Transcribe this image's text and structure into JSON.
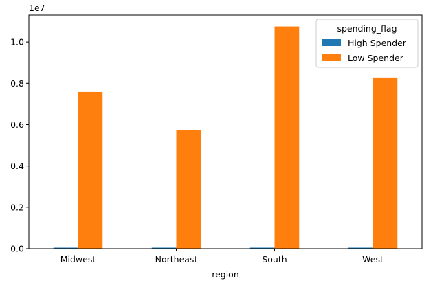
{
  "chart_data": {
    "type": "bar",
    "categories": [
      "Midwest",
      "Northeast",
      "South",
      "West"
    ],
    "series": [
      {
        "name": "High Spender",
        "values": [
          15000,
          12000,
          20000,
          16000
        ],
        "color": "#1f77b4"
      },
      {
        "name": "Low Spender",
        "values": [
          7580000,
          5730000,
          10750000,
          8280000
        ],
        "color": "#ff7f0e"
      }
    ],
    "xlabel": "region",
    "ylabel": "",
    "ylim": [
      0,
      11300000
    ],
    "yticks": [
      0,
      2000000,
      4000000,
      6000000,
      8000000,
      10000000
    ],
    "ytick_labels": [
      "0.0",
      "0.2",
      "0.4",
      "0.6",
      "0.8",
      "1.0"
    ],
    "offset_text": "1e7",
    "legend": {
      "title": "spending_flag",
      "placement": "top-right"
    },
    "grid": false
  }
}
